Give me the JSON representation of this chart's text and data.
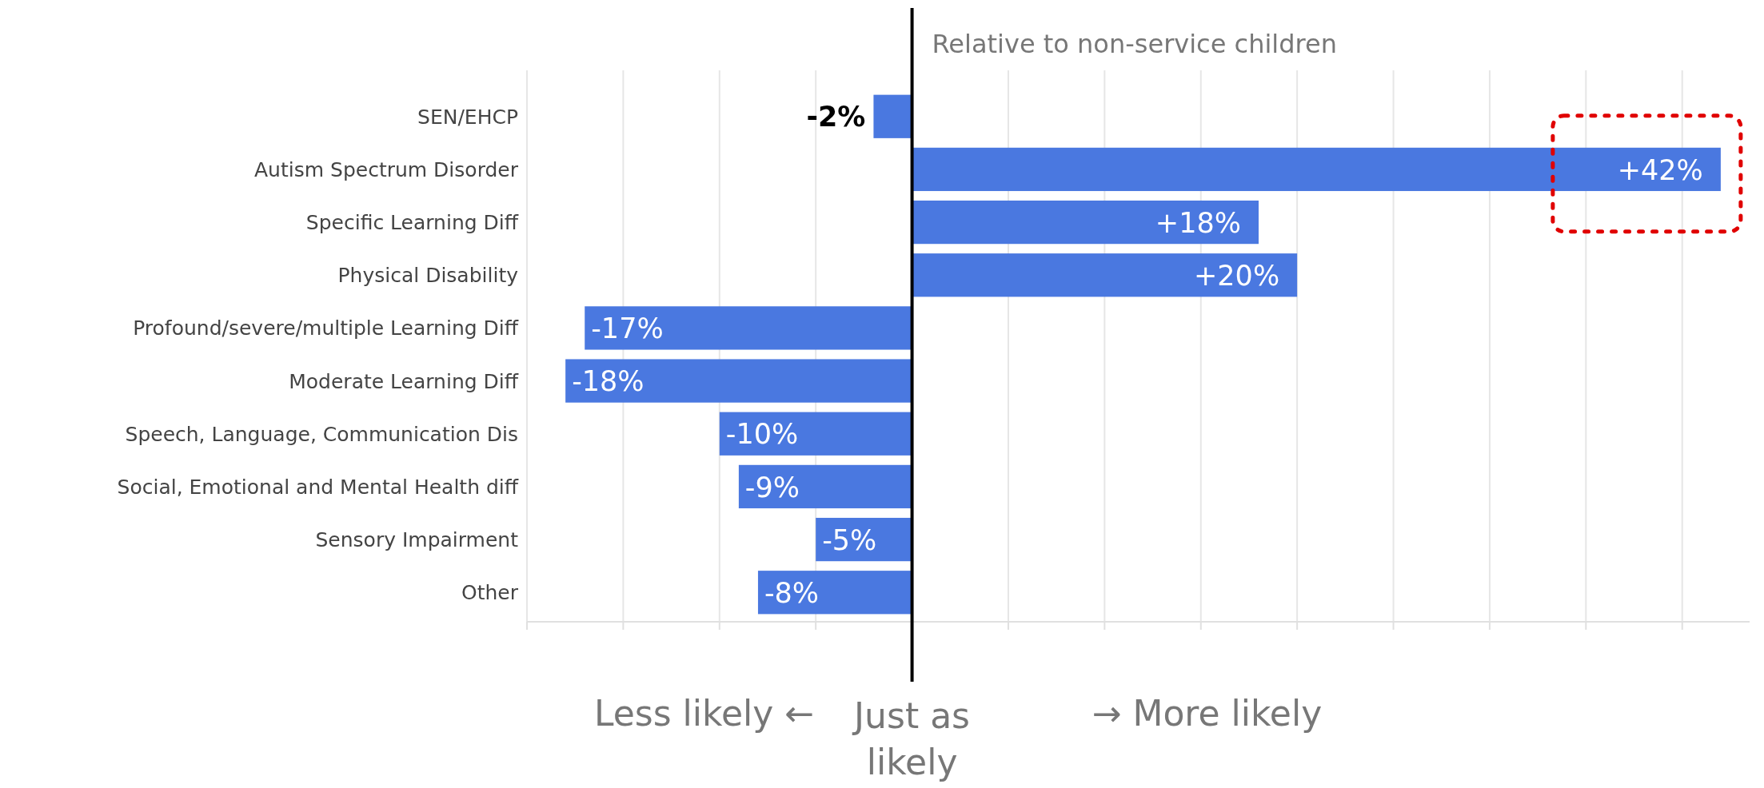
{
  "chart_data": {
    "type": "bar",
    "orientation": "horizontal",
    "categories": [
      "SEN/EHCP",
      "Autism Spectrum Disorder",
      "Specific Learning Diff",
      "Physical Disability",
      "Profound/severe/multiple Learning Diff",
      "Moderate Learning Diff",
      "Speech, Language, Communication Dis",
      "Social, Emotional and Mental Health diff",
      "Sensory Impairment",
      "Other"
    ],
    "values": [
      -2,
      42,
      18,
      20,
      -17,
      -18,
      -10,
      -9,
      -5,
      -8
    ],
    "value_labels": [
      "-2%",
      "+42%",
      "+18%",
      "+20%",
      "-17%",
      "-18%",
      "-10%",
      "-9%",
      "-5%",
      "-8%"
    ],
    "color": "#4a78e0",
    "xlim": [
      -20,
      43.5
    ],
    "xticks": [
      {
        "value": -20,
        "label": null
      },
      {
        "value": -15,
        "label": null
      },
      {
        "value": -10,
        "label": null
      },
      {
        "value": -5,
        "label": null
      },
      {
        "value": 0,
        "label": null
      },
      {
        "value": 5,
        "label": null
      },
      {
        "value": 10,
        "label": null
      },
      {
        "value": 15,
        "label": null
      },
      {
        "value": 20,
        "label": null
      },
      {
        "value": 25,
        "label": null
      },
      {
        "value": 30,
        "label": null
      },
      {
        "value": 35,
        "label": null
      },
      {
        "value": 40,
        "label": null
      }
    ],
    "grid": "x",
    "ref_lines": [
      {
        "axis": "x",
        "value": 0,
        "label": null,
        "color": "#000000"
      }
    ],
    "annotations": [
      "Relative to non-service children",
      "Less likely ←",
      "Just as likely",
      "→ More likely"
    ]
  }
}
